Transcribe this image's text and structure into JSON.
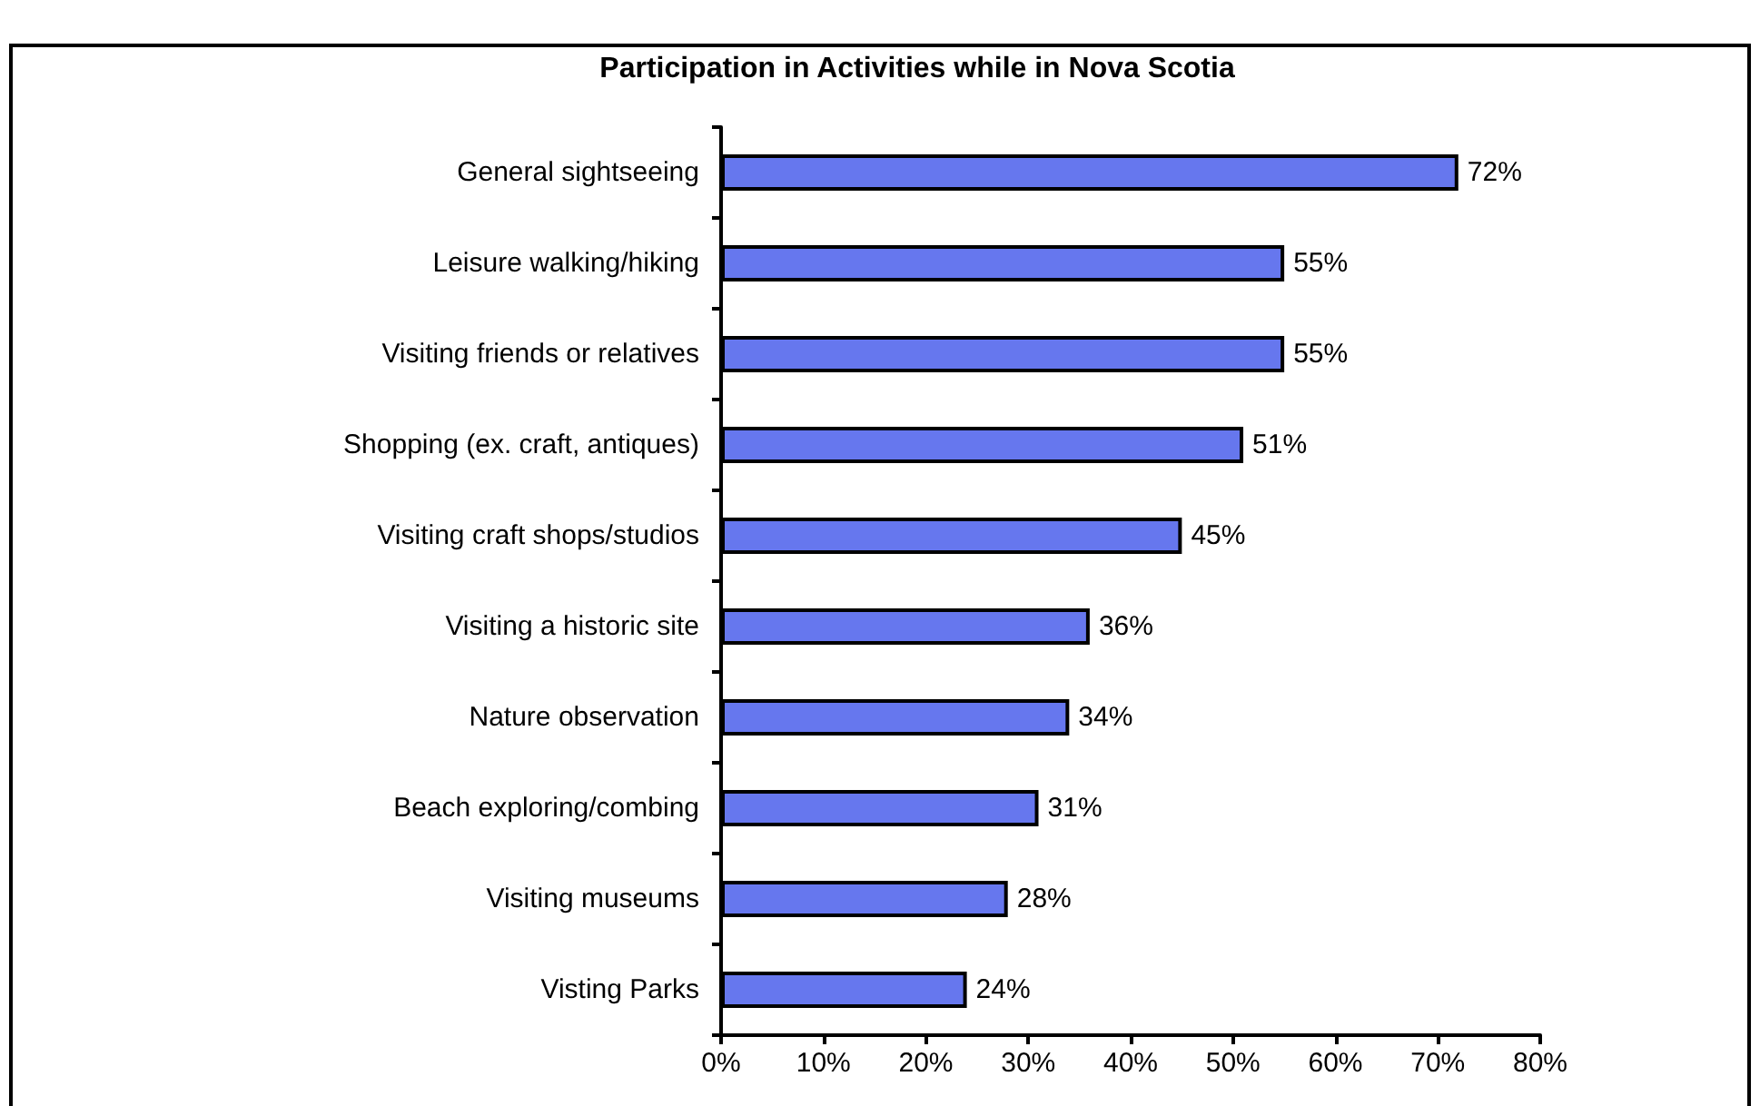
{
  "chart_data": {
    "type": "bar",
    "orientation": "horizontal",
    "title": "Participation in Activities while in Nova Scotia",
    "categories": [
      "General sightseeing",
      "Leisure walking/hiking",
      "Visiting friends or relatives",
      "Shopping (ex. craft, antiques)",
      "Visiting craft shops/studios",
      "Visiting a historic site",
      "Nature observation",
      "Beach exploring/combing",
      "Visiting museums",
      "Visting Parks"
    ],
    "values": [
      72,
      55,
      55,
      51,
      45,
      36,
      34,
      31,
      28,
      24
    ],
    "value_labels": [
      "72%",
      "55%",
      "55%",
      "51%",
      "45%",
      "36%",
      "34%",
      "31%",
      "28%",
      "24%"
    ],
    "color": "#6677ee",
    "xlim": [
      0,
      80
    ],
    "xticks": [
      {
        "value": 0,
        "label": "0%"
      },
      {
        "value": 10,
        "label": "10%"
      },
      {
        "value": 20,
        "label": "20%"
      },
      {
        "value": 30,
        "label": "30%"
      },
      {
        "value": 40,
        "label": "40%"
      },
      {
        "value": 50,
        "label": "50%"
      },
      {
        "value": 60,
        "label": "60%"
      },
      {
        "value": 70,
        "label": "70%"
      },
      {
        "value": 80,
        "label": "80%"
      }
    ],
    "grid": false
  }
}
